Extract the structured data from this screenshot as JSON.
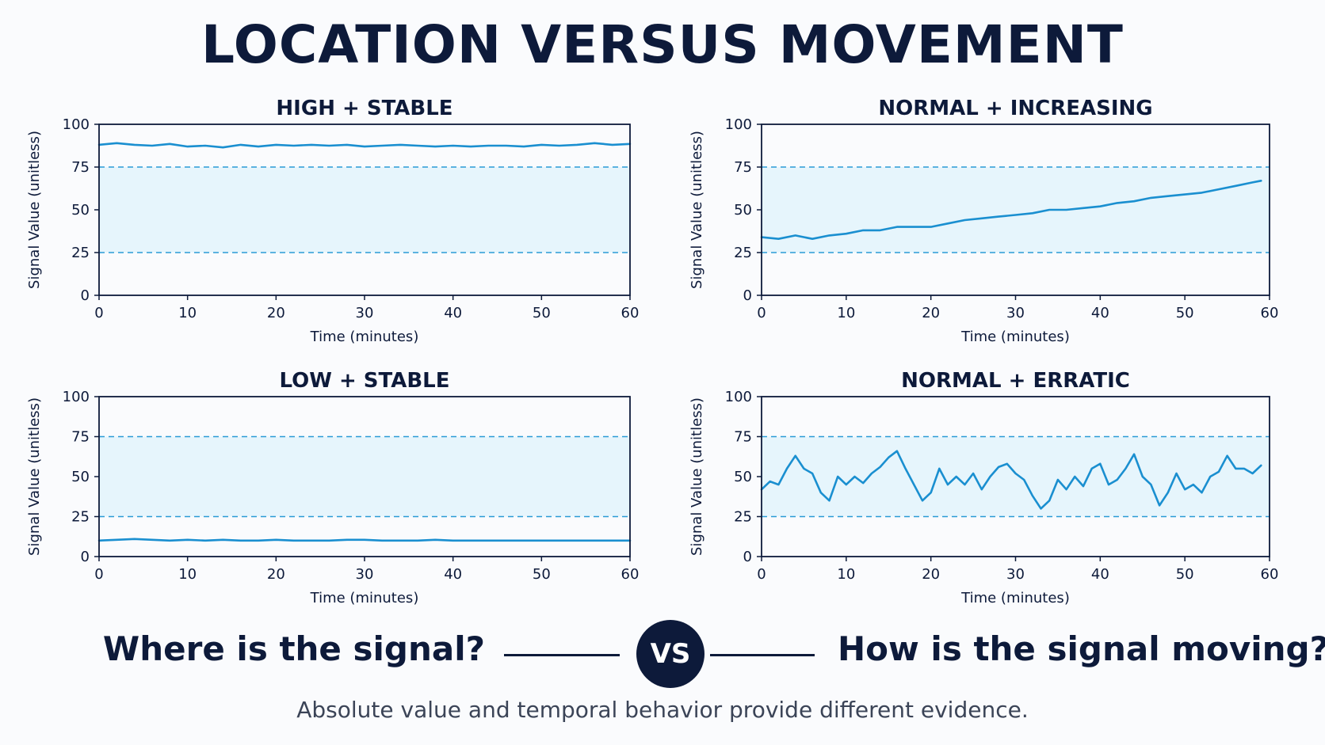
{
  "title": "LOCATION VERSUS MOVEMENT",
  "bottom": {
    "left_question": "Where is the signal?",
    "vs_label": "VS",
    "right_question": "How is the signal moving?",
    "caption": "Absolute value and temporal behavior provide different evidence."
  },
  "colors": {
    "line": "#1a8fd0",
    "band": "#e6f5fc",
    "threshold": "#2a9bd6",
    "axis": "#0d1a3a"
  },
  "chart_data": [
    {
      "type": "line",
      "title": "HIGH + STABLE",
      "xlabel": "Time (minutes)",
      "ylabel": "Signal Value (unitless)",
      "xlim": [
        0,
        60
      ],
      "ylim": [
        0,
        100
      ],
      "xticks": [
        0,
        10,
        20,
        30,
        40,
        50,
        60
      ],
      "yticks": [
        0,
        25,
        50,
        75,
        100
      ],
      "reference_band": [
        25,
        75
      ],
      "grid": false,
      "series": [
        {
          "x": [
            0,
            2,
            4,
            6,
            8,
            10,
            12,
            14,
            16,
            18,
            20,
            22,
            24,
            26,
            28,
            30,
            32,
            34,
            36,
            38,
            40,
            42,
            44,
            46,
            48,
            50,
            52,
            54,
            56,
            58,
            60
          ],
          "y": [
            88,
            89,
            88,
            87.5,
            88.5,
            87,
            87.5,
            86.5,
            88,
            87,
            88,
            87.5,
            88,
            87.5,
            88,
            87,
            87.5,
            88,
            87.5,
            87,
            87.5,
            87,
            87.5,
            87.5,
            87,
            88,
            87.5,
            88,
            89,
            88,
            88.5
          ]
        }
      ]
    },
    {
      "type": "line",
      "title": "NORMAL + INCREASING",
      "xlabel": "Time (minutes)",
      "ylabel": "Signal Value (unitless)",
      "xlim": [
        0,
        60
      ],
      "ylim": [
        0,
        100
      ],
      "xticks": [
        0,
        10,
        20,
        30,
        40,
        50,
        60
      ],
      "yticks": [
        0,
        25,
        50,
        75,
        100
      ],
      "reference_band": [
        25,
        75
      ],
      "grid": false,
      "series": [
        {
          "x": [
            0,
            2,
            4,
            6,
            8,
            10,
            12,
            14,
            16,
            18,
            20,
            22,
            24,
            26,
            28,
            30,
            32,
            34,
            36,
            38,
            40,
            42,
            44,
            46,
            48,
            50,
            52,
            54,
            56,
            58,
            59
          ],
          "y": [
            34,
            33,
            35,
            33,
            35,
            36,
            38,
            38,
            40,
            40,
            40,
            42,
            44,
            45,
            46,
            47,
            48,
            50,
            50,
            51,
            52,
            54,
            55,
            57,
            58,
            59,
            60,
            62,
            64,
            66,
            67
          ]
        }
      ]
    },
    {
      "type": "line",
      "title": "LOW + STABLE",
      "xlabel": "Time (minutes)",
      "ylabel": "Signal Value (unitless)",
      "xlim": [
        0,
        60
      ],
      "ylim": [
        0,
        100
      ],
      "xticks": [
        0,
        10,
        20,
        30,
        40,
        50,
        60
      ],
      "yticks": [
        0,
        25,
        50,
        75,
        100
      ],
      "reference_band": [
        25,
        75
      ],
      "grid": false,
      "series": [
        {
          "x": [
            0,
            2,
            4,
            6,
            8,
            10,
            12,
            14,
            16,
            18,
            20,
            22,
            24,
            26,
            28,
            30,
            32,
            34,
            36,
            38,
            40,
            42,
            44,
            46,
            48,
            50,
            52,
            54,
            56,
            58,
            60
          ],
          "y": [
            10,
            10.5,
            11,
            10.5,
            10,
            10.5,
            10,
            10.5,
            10,
            10,
            10.5,
            10,
            10,
            10,
            10.5,
            10.5,
            10,
            10,
            10,
            10.5,
            10,
            10,
            10,
            10,
            10,
            10,
            10,
            10,
            10,
            10,
            10
          ]
        }
      ]
    },
    {
      "type": "line",
      "title": "NORMAL + ERRATIC",
      "xlabel": "Time (minutes)",
      "ylabel": "Signal Value (unitless)",
      "xlim": [
        0,
        60
      ],
      "ylim": [
        0,
        100
      ],
      "xticks": [
        0,
        10,
        20,
        30,
        40,
        50,
        60
      ],
      "yticks": [
        0,
        25,
        50,
        75,
        100
      ],
      "reference_band": [
        25,
        75
      ],
      "grid": false,
      "series": [
        {
          "x": [
            0,
            1,
            2,
            3,
            4,
            5,
            6,
            7,
            8,
            9,
            10,
            11,
            12,
            13,
            14,
            15,
            16,
            17,
            18,
            19,
            20,
            21,
            22,
            23,
            24,
            25,
            26,
            27,
            28,
            29,
            30,
            31,
            32,
            33,
            34,
            35,
            36,
            37,
            38,
            39,
            40,
            41,
            42,
            43,
            44,
            45,
            46,
            47,
            48,
            49,
            50,
            51,
            52,
            53,
            54,
            55,
            56,
            57,
            58,
            59
          ],
          "y": [
            42,
            47,
            45,
            55,
            63,
            55,
            52,
            40,
            35,
            50,
            45,
            50,
            46,
            52,
            56,
            62,
            66,
            55,
            45,
            35,
            40,
            55,
            45,
            50,
            45,
            52,
            42,
            50,
            56,
            58,
            52,
            48,
            38,
            30,
            35,
            48,
            42,
            50,
            44,
            55,
            58,
            45,
            48,
            55,
            64,
            50,
            45,
            32,
            40,
            52,
            42,
            45,
            40,
            50,
            53,
            63,
            55,
            55,
            52,
            57
          ]
        }
      ]
    }
  ]
}
